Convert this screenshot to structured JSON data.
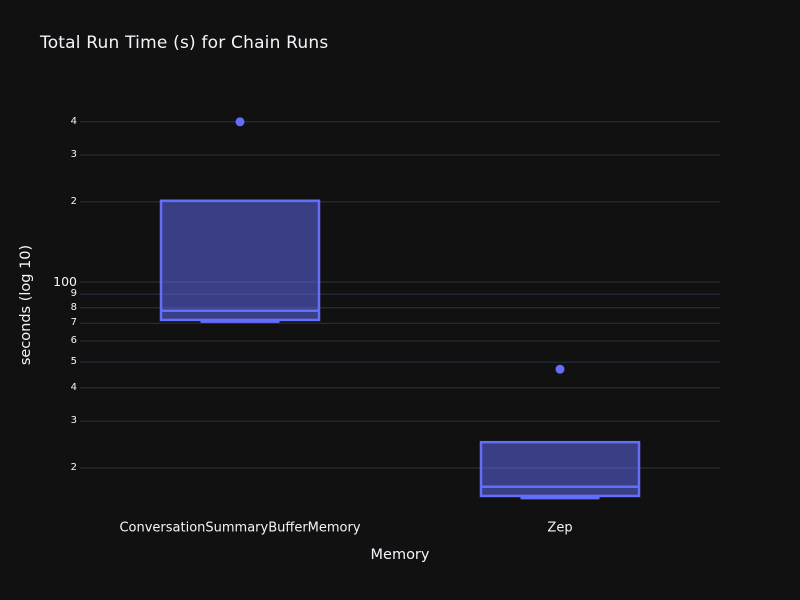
{
  "chart_data": {
    "type": "box",
    "title": "Total Run Time (s) for Chain Runs",
    "xlabel": "Memory",
    "ylabel": "seconds (log 10)",
    "yscale": "log10",
    "ylim": [
      13.2,
      483
    ],
    "grid": true,
    "legend": "none",
    "colors": {
      "background": "#111111",
      "grid": "#283442",
      "text": "#f2f5fa",
      "accent": "#636efa",
      "box_fill": "rgba(99,110,250,0.5)"
    },
    "series": [
      {
        "name": "ConversationSummaryBufferMemory",
        "whisker_low": 71,
        "q1": 72,
        "median": 78,
        "q3": 202,
        "whisker_high": 202,
        "outliers": [
          400
        ]
      },
      {
        "name": "Zep",
        "whisker_low": 15.4,
        "q1": 15.7,
        "median": 17,
        "q3": 25,
        "whisker_high": 25,
        "outliers": [
          47
        ]
      }
    ],
    "yticks": [
      {
        "value": 400,
        "label": "4",
        "minor": true
      },
      {
        "value": 300,
        "label": "3",
        "minor": true
      },
      {
        "value": 200,
        "label": "2",
        "minor": true
      },
      {
        "value": 100,
        "label": "100",
        "minor": false
      },
      {
        "value": 90,
        "label": "9",
        "minor": true
      },
      {
        "value": 80,
        "label": "8",
        "minor": true
      },
      {
        "value": 70,
        "label": "7",
        "minor": true
      },
      {
        "value": 60,
        "label": "6",
        "minor": true
      },
      {
        "value": 50,
        "label": "5",
        "minor": true
      },
      {
        "value": 40,
        "label": "4",
        "minor": true
      },
      {
        "value": 30,
        "label": "3",
        "minor": true
      },
      {
        "value": 20,
        "label": "2",
        "minor": true
      }
    ]
  }
}
